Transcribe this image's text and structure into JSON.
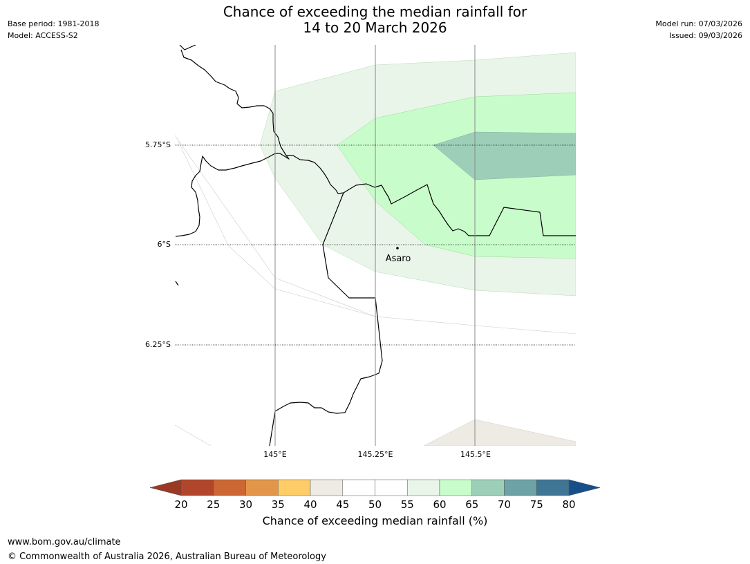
{
  "header": {
    "title_line1": "Chance of exceeding the median rainfall for",
    "title_line2": "14 to 20 March 2026",
    "base_period": "Base period: 1981-2018",
    "model": "Model: ACCESS-S2",
    "model_run": "Model run: 07/03/2026",
    "issued": "Issued: 09/03/2026"
  },
  "map": {
    "lat_labels": [
      "5.75°S",
      "6°S",
      "6.25°S"
    ],
    "lon_labels": [
      "145°E",
      "145.25°E",
      "145.5°E"
    ],
    "place": "Asaro"
  },
  "colorbar": {
    "ticks": [
      "20",
      "25",
      "30",
      "35",
      "40",
      "45",
      "50",
      "55",
      "60",
      "65",
      "70",
      "75",
      "80"
    ],
    "colors": [
      "#b1462a",
      "#cc6633",
      "#e3954a",
      "#fecd68",
      "#eeebe5",
      "#ffffff",
      "#ffffff",
      "#e9f5e9",
      "#c9fccb",
      "#9dcfb8",
      "#6da3a6",
      "#3f7595"
    ],
    "under_color": "#9a3a25",
    "over_color": "#174f8a",
    "label": "Chance of exceeding median rainfall (%)"
  },
  "footer": {
    "url": "www.bom.gov.au/climate",
    "copyright": "© Commonwealth of Australia 2026, Australian Bureau of Meteorology"
  }
}
